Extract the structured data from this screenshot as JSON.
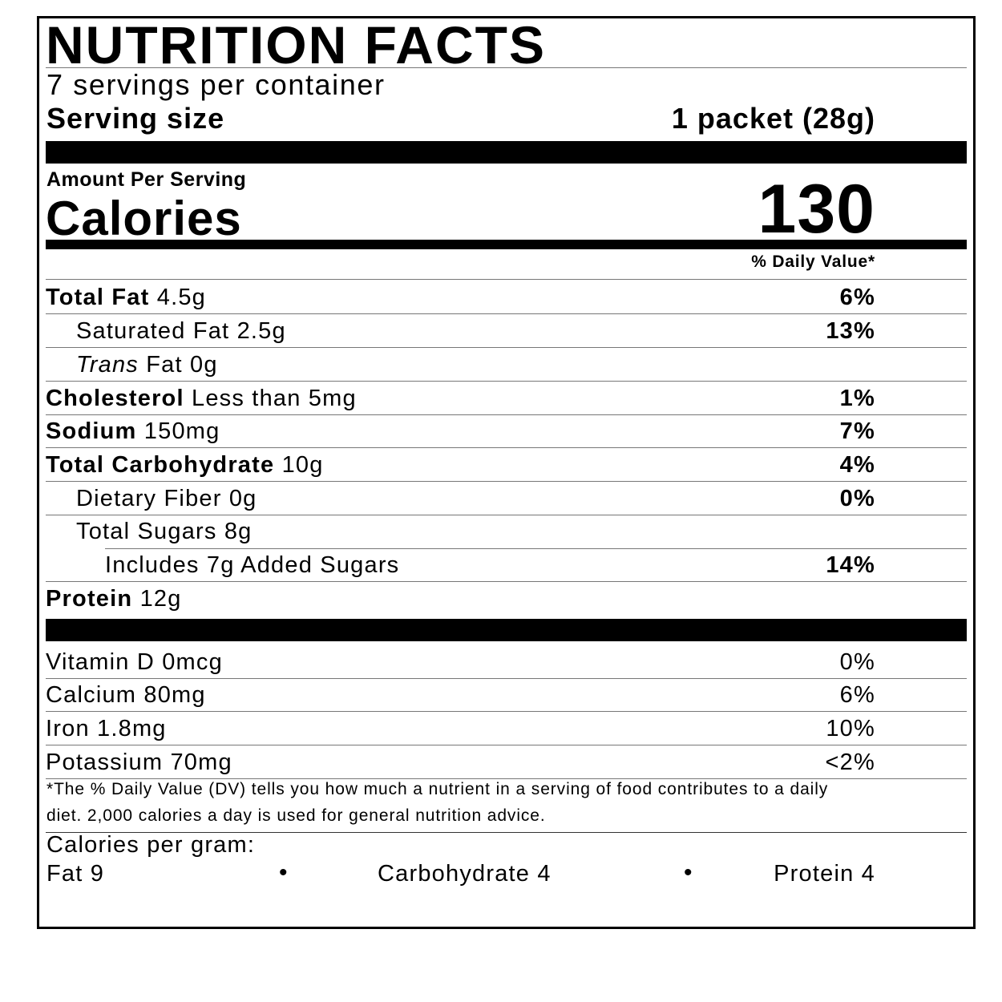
{
  "title": "NUTRITION FACTS",
  "servings_per_container": "7 servings per container",
  "serving_size": {
    "label": "Serving size",
    "value": "1 packet (28g)"
  },
  "amount_per_serving": "Amount Per Serving",
  "calories": {
    "label": "Calories",
    "value": "130"
  },
  "daily_value_header": "% Daily Value*",
  "nutrients": [
    {
      "name": "Total Fat",
      "amount": " 4.5g",
      "dv": "6%"
    },
    {
      "name": "Saturated Fat 2.5g",
      "dv": "13%"
    },
    {
      "italic": "Trans",
      "name": " Fat 0g",
      "dv": ""
    },
    {
      "name": "Cholesterol",
      "amount": " Less than 5mg",
      "dv": "1%"
    },
    {
      "name": "Sodium",
      "amount": " 150mg",
      "dv": "7%"
    },
    {
      "name": "Total Carbohydrate",
      "amount": " 10g",
      "dv": "4%"
    },
    {
      "name": "Dietary Fiber 0g",
      "dv": "0%"
    },
    {
      "name": "Total Sugars 8g",
      "dv": ""
    },
    {
      "name": "Includes 7g Added Sugars",
      "dv": "14%"
    },
    {
      "name": "Protein",
      "amount": " 12g",
      "dv": ""
    }
  ],
  "vitamins": [
    {
      "name": "Vitamin D 0mcg",
      "dv": "0%"
    },
    {
      "name": "Calcium 80mg",
      "dv": "6%"
    },
    {
      "name": "Iron 1.8mg",
      "dv": "10%"
    },
    {
      "name": "Potassium 70mg",
      "dv": "<2%"
    }
  ],
  "footnote_line1": "*The % Daily Value (DV) tells you how much a nutrient in a serving of food contributes to a daily",
  "footnote_line2": "diet. 2,000 calories a day is used for general nutrition advice.",
  "calories_per_gram": {
    "label": "Calories per gram:",
    "fat": "Fat 9",
    "carbohydrate": "Carbohydrate 4",
    "protein": "Protein 4",
    "separator": "•"
  }
}
